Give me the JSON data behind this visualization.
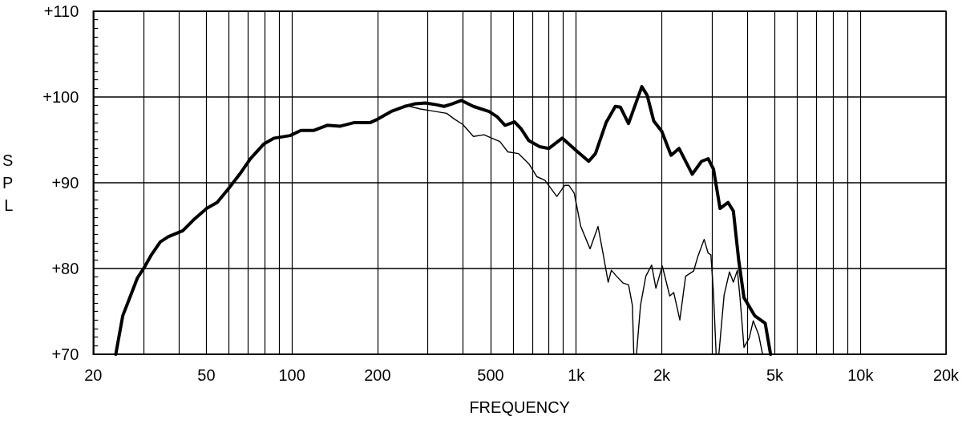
{
  "chart_data": {
    "type": "line",
    "xlabel": "FREQUENCY",
    "ylabel": "SPL",
    "log": "x",
    "grid": true,
    "marker": "none",
    "line_style": "solid",
    "xlim": [
      20,
      20000
    ],
    "xticks": [
      20,
      {
        "value": 30,
        "label": null
      },
      {
        "value": 40,
        "label": null
      },
      50,
      {
        "value": 60,
        "label": null
      },
      {
        "value": 70,
        "label": null
      },
      {
        "value": 80,
        "label": null
      },
      {
        "value": 90,
        "label": null
      },
      100,
      200,
      {
        "value": 300,
        "label": null
      },
      {
        "value": 400,
        "label": null
      },
      500,
      {
        "value": 600,
        "label": null
      },
      {
        "value": 700,
        "label": null
      },
      {
        "value": 800,
        "label": null
      },
      {
        "value": 900,
        "label": null
      },
      {
        "value": 1000,
        "label": "1k"
      },
      {
        "value": 2000,
        "label": "2k"
      },
      {
        "value": 3000,
        "label": null
      },
      {
        "value": 4000,
        "label": null
      },
      {
        "value": 5000,
        "label": "5k"
      },
      {
        "value": 6000,
        "label": null
      },
      {
        "value": 7000,
        "label": null
      },
      {
        "value": 8000,
        "label": null
      },
      {
        "value": 9000,
        "label": null
      },
      {
        "value": 10000,
        "label": "10k"
      },
      {
        "value": 20000,
        "label": "20k"
      }
    ],
    "ylim": [
      70,
      110
    ],
    "yticks": [
      {
        "value": 70,
        "label": "+70"
      },
      {
        "value": 80,
        "label": "+80"
      },
      {
        "value": 90,
        "label": "+90"
      },
      {
        "value": 100,
        "label": "+100"
      },
      {
        "value": 110,
        "label": "+110"
      }
    ],
    "series": [
      {
        "color": "#000000",
        "x": [
          24,
          25.4,
          27.1,
          28.6,
          30.2,
          31.9,
          34.4,
          36.7,
          41.3,
          45.5,
          50.1,
          54.6,
          60.1,
          65.5,
          71.4,
          79.5,
          86.6,
          98.6,
          107.5,
          119.6,
          133,
          148,
          165,
          188,
          200,
          223,
          249,
          271,
          295,
          322,
          343,
          366,
          394,
          435,
          494,
          527,
          562,
          607,
          640,
          682,
          744,
          802,
          893,
          1005,
          1107,
          1169,
          1274,
          1373,
          1432,
          1528,
          1702,
          1777,
          1875,
          2000,
          2157,
          2301,
          2561,
          2761,
          2913,
          3041,
          3208,
          3422,
          3573,
          3733,
          3894,
          4246,
          4626,
          4830
        ],
        "values": [
          70,
          74.5,
          76.9,
          78.9,
          80.1,
          81.5,
          83.1,
          83.7,
          84.4,
          85.8,
          87.0,
          87.7,
          89.4,
          91.0,
          92.8,
          94.5,
          95.2,
          95.5,
          96.1,
          96.1,
          96.7,
          96.6,
          97.0,
          97.0,
          97.4,
          98.3,
          98.9,
          99.2,
          99.3,
          99.1,
          98.9,
          99.2,
          99.6,
          98.9,
          98.3,
          97.7,
          96.7,
          97.1,
          96.3,
          94.9,
          94.2,
          94.0,
          95.2,
          93.7,
          92.5,
          93.4,
          97.0,
          98.9,
          98.8,
          96.9,
          101.2,
          100.2,
          97.2,
          96.0,
          93.2,
          94.0,
          91.0,
          92.5,
          92.8,
          91.6,
          87.0,
          87.7,
          86.7,
          80.9,
          76.6,
          74.5,
          73.6,
          70
        ]
      },
      {
        "color": "#000000",
        "x": [
          260,
          283,
          308,
          350,
          374,
          399,
          435,
          474,
          505,
          539,
          575,
          626,
          682,
          728,
          776,
          855,
          912,
          942,
          984,
          1038,
          1119,
          1194,
          1247,
          1296,
          1330,
          1387,
          1463,
          1529,
          1577,
          1595,
          1630,
          1684,
          1758,
          1843,
          1908,
          2009,
          2134,
          2204,
          2316,
          2427,
          2589,
          2674,
          2820,
          2912,
          2978,
          3041,
          3108,
          3177,
          3315,
          3462,
          3573,
          3691,
          3771,
          3894,
          4064,
          4198,
          4384,
          4528
        ],
        "values": [
          98.9,
          98.6,
          98.4,
          98.1,
          97.4,
          96.8,
          95.4,
          95.6,
          95.2,
          94.8,
          93.6,
          93.4,
          92.2,
          90.7,
          90.3,
          88.4,
          89.7,
          89.7,
          88.8,
          84.9,
          82.3,
          84.9,
          81.5,
          78.4,
          79.8,
          79.1,
          78.3,
          78.1,
          75.7,
          70,
          70,
          75.7,
          79.1,
          80.4,
          77.7,
          80.3,
          76.8,
          77.2,
          74.0,
          79.1,
          79.7,
          81.3,
          83.4,
          81.8,
          81.6,
          77.2,
          70,
          70,
          76.9,
          79.6,
          78.4,
          79.8,
          76.6,
          70.8,
          71.9,
          73.9,
          72.3,
          70
        ]
      }
    ]
  }
}
